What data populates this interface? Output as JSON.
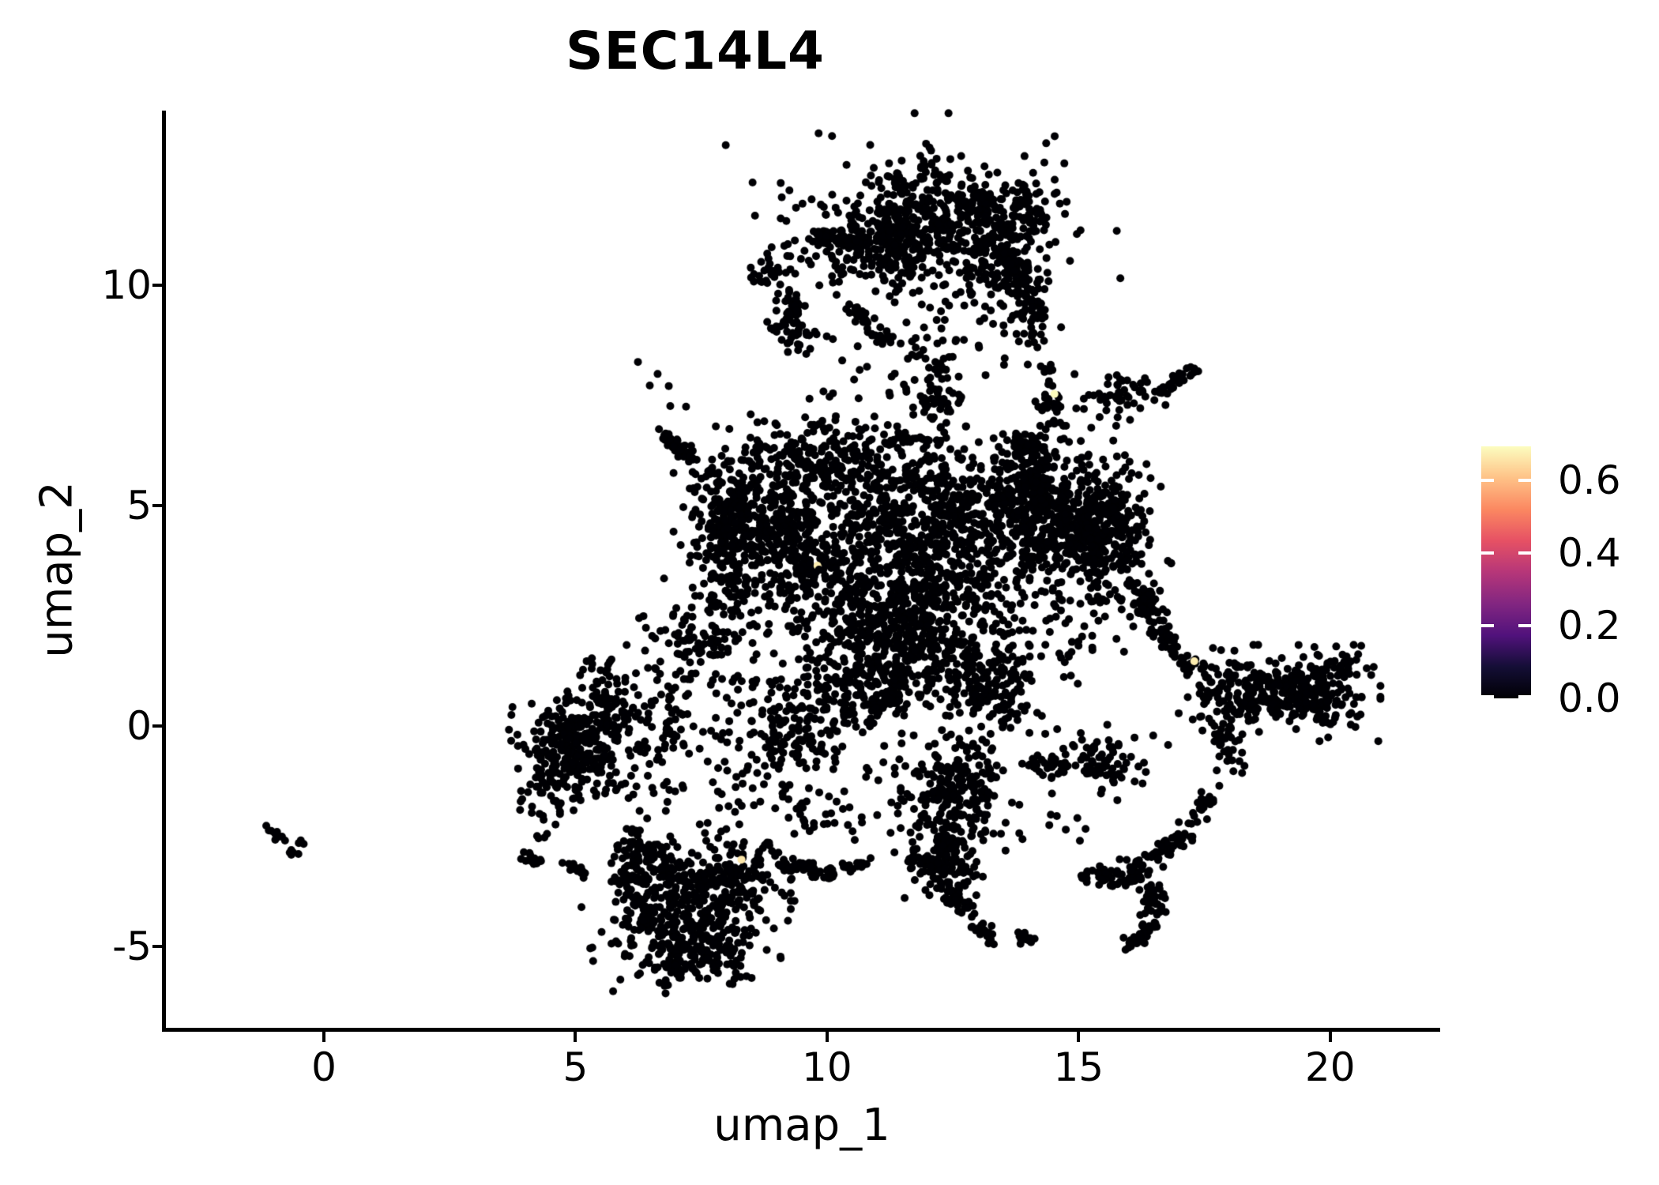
{
  "title": "SEC14L4",
  "axes": {
    "x": {
      "label": "umap_1",
      "ticks": [
        0,
        5,
        10,
        15,
        20
      ],
      "range": [
        -3.14,
        22.14
      ]
    },
    "y": {
      "label": "umap_2",
      "ticks": [
        -5,
        0,
        5,
        10
      ],
      "range": [
        -6.88,
        13.96
      ]
    }
  },
  "colorbar": {
    "tick_labels": [
      "0.0",
      "0.2",
      "0.4",
      "0.6"
    ],
    "tick_values": [
      0,
      0.2,
      0.4,
      0.6
    ],
    "domain": [
      0,
      0.693
    ],
    "colormap": "magma",
    "stops": [
      [
        0,
        "#000004"
      ],
      [
        0.125,
        "#140e36"
      ],
      [
        0.25,
        "#51127c"
      ],
      [
        0.375,
        "#822681"
      ],
      [
        0.5,
        "#b63679"
      ],
      [
        0.625,
        "#e65164"
      ],
      [
        0.75,
        "#fb8861"
      ],
      [
        0.875,
        "#fec287"
      ],
      [
        1,
        "#fcfdbf"
      ]
    ]
  },
  "style": {
    "background": "#ffffff",
    "point_color": "#000004",
    "point_radius": 5,
    "axis_color": "#000000",
    "cb_tick_color": "#ffffff"
  },
  "chart_data": {
    "type": "scatter",
    "title": "SEC14L4",
    "xlabel": "umap_1",
    "ylabel": "umap_2",
    "xlim": [
      -3.14,
      22.14
    ],
    "ylim": [
      -6.88,
      13.96
    ],
    "grid": false,
    "legend_position": "right",
    "color_scale": {
      "name": "magma",
      "min": 0.0,
      "max": 0.693,
      "shown_ticks": [
        0.0,
        0.2,
        0.4,
        0.6
      ]
    },
    "seed": 20240601,
    "clusters": [
      {
        "k": "b",
        "x": 12.2,
        "y": 11.15,
        "sx": 1.2,
        "sy": 0.62,
        "n": 380
      },
      {
        "k": "b",
        "x": 11.05,
        "y": 11.05,
        "sx": 0.5,
        "sy": 0.5,
        "n": 110
      },
      {
        "k": "b",
        "x": 12.6,
        "y": 11.95,
        "sx": 0.75,
        "sy": 0.38,
        "n": 85
      },
      {
        "k": "b",
        "x": 13.45,
        "y": 10.55,
        "sx": 0.45,
        "sy": 0.5,
        "n": 90
      },
      {
        "k": "l",
        "x1": 9.7,
        "y1": 11.1,
        "x2": 10.7,
        "y2": 11.05,
        "w": 0.09,
        "n": 60
      },
      {
        "k": "b",
        "x": 9.0,
        "y": 10.45,
        "sx": 0.2,
        "sy": 0.25,
        "n": 26
      },
      {
        "k": "b",
        "x": 8.6,
        "y": 10.3,
        "sx": 0.12,
        "sy": 0.15,
        "n": 8
      },
      {
        "k": "b",
        "x": 13.95,
        "y": 11.6,
        "sx": 0.3,
        "sy": 0.35,
        "n": 40
      },
      {
        "k": "b",
        "x": 12.1,
        "y": 11.3,
        "sx": 1.6,
        "sy": 1.0,
        "n": 100
      },
      {
        "k": "b",
        "x": 12.05,
        "y": 12.75,
        "sx": 0.12,
        "sy": 0.22,
        "n": 13
      },
      {
        "k": "b",
        "x": 11.45,
        "y": 12.35,
        "sx": 0.15,
        "sy": 0.2,
        "n": 14
      },
      {
        "k": "l",
        "x1": 9.25,
        "y1": 9.7,
        "x2": 9.5,
        "y2": 8.45,
        "w": 0.13,
        "n": 48
      },
      {
        "k": "b",
        "x": 9.18,
        "y": 9.05,
        "sx": 0.2,
        "sy": 0.25,
        "n": 22
      },
      {
        "k": "b",
        "x": 12.3,
        "y": 8.6,
        "sx": 0.65,
        "sy": 0.6,
        "n": 40
      },
      {
        "k": "l",
        "x1": 12.25,
        "y1": 8.45,
        "x2": 12.2,
        "y2": 7.0,
        "w": 0.12,
        "n": 26
      },
      {
        "k": "l",
        "x1": 13.75,
        "y1": 10.5,
        "x2": 14.15,
        "y2": 9.05,
        "w": 0.2,
        "n": 85
      },
      {
        "k": "l",
        "x1": 14.3,
        "y1": 8.3,
        "x2": 14.55,
        "y2": 6.8,
        "w": 0.12,
        "n": 30
      },
      {
        "k": "l",
        "x1": 10.45,
        "y1": 9.65,
        "x2": 10.78,
        "y2": 9.1,
        "w": 0.09,
        "n": 20
      },
      {
        "k": "l",
        "x1": 10.82,
        "y1": 9.0,
        "x2": 11.28,
        "y2": 8.68,
        "w": 0.09,
        "n": 16
      },
      {
        "k": "b",
        "x": 11.2,
        "y": 7.9,
        "sx": 1.1,
        "sy": 0.55,
        "n": 26
      },
      {
        "k": "l",
        "x1": 16.7,
        "y1": 7.7,
        "x2": 17.35,
        "y2": 8.1,
        "w": 0.07,
        "n": 28
      },
      {
        "k": "b",
        "x": 15.85,
        "y": 7.5,
        "sx": 0.42,
        "sy": 0.26,
        "n": 55
      },
      {
        "k": "b",
        "x": 8.9,
        "y": 4.6,
        "sx": 0.75,
        "sy": 0.95,
        "n": 520
      },
      {
        "k": "l",
        "x1": 7.95,
        "y1": 5.5,
        "x2": 8.1,
        "y2": 2.7,
        "w": 0.25,
        "n": 120
      },
      {
        "k": "b",
        "x": 11.3,
        "y": 3.1,
        "sx": 1.05,
        "sy": 1.0,
        "n": 600
      },
      {
        "k": "b",
        "x": 11.6,
        "y": 5.05,
        "sx": 1.0,
        "sy": 0.72,
        "n": 330
      },
      {
        "k": "b",
        "x": 14.5,
        "y": 4.6,
        "sx": 0.9,
        "sy": 0.85,
        "n": 550
      },
      {
        "k": "b",
        "x": 15.55,
        "y": 4.5,
        "sx": 0.5,
        "sy": 0.8,
        "n": 200
      },
      {
        "k": "b",
        "x": 11.7,
        "y": 1.8,
        "sx": 0.9,
        "sy": 0.6,
        "n": 280
      },
      {
        "k": "b",
        "x": 10.6,
        "y": 0.85,
        "sx": 0.8,
        "sy": 0.55,
        "n": 160
      },
      {
        "k": "l",
        "x1": 6.72,
        "y1": 6.62,
        "x2": 7.35,
        "y2": 6.05,
        "w": 0.08,
        "n": 40
      },
      {
        "k": "l",
        "x1": 7.45,
        "y1": 5.95,
        "x2": 7.95,
        "y2": 5.5,
        "w": 0.16,
        "n": 14
      },
      {
        "k": "b",
        "x": 10.2,
        "y": 6.1,
        "sx": 0.8,
        "sy": 0.4,
        "n": 140
      },
      {
        "k": "l",
        "x1": 11.3,
        "y1": 6.55,
        "x2": 12.35,
        "y2": 6.45,
        "w": 0.08,
        "n": 22
      },
      {
        "k": "b",
        "x": 12.0,
        "y": 7.3,
        "sx": 0.16,
        "sy": 0.16,
        "n": 14
      },
      {
        "k": "b",
        "x": 12.85,
        "y": 4.2,
        "sx": 0.6,
        "sy": 0.8,
        "n": 150
      },
      {
        "k": "l",
        "x1": 13.6,
        "y1": 6.55,
        "x2": 14.2,
        "y2": 6.3,
        "w": 0.12,
        "n": 25
      },
      {
        "k": "b",
        "x": 13.9,
        "y": 5.9,
        "sx": 0.35,
        "sy": 0.3,
        "n": 60
      },
      {
        "k": "b",
        "x": 7.6,
        "y": 2.2,
        "sx": 0.5,
        "sy": 0.6,
        "n": 90
      },
      {
        "k": "b",
        "x": 6.85,
        "y": 1.2,
        "sx": 0.5,
        "sy": 0.65,
        "n": 40
      },
      {
        "k": "b",
        "x": 9.3,
        "y": 0.35,
        "sx": 0.7,
        "sy": 0.5,
        "n": 90
      },
      {
        "k": "b",
        "x": 9.35,
        "y": -0.5,
        "sx": 0.6,
        "sy": 0.5,
        "n": 70
      },
      {
        "k": "b",
        "x": 13.25,
        "y": 1.2,
        "sx": 0.5,
        "sy": 0.6,
        "n": 90
      },
      {
        "k": "b",
        "x": 13.2,
        "y": 0.5,
        "sx": 0.45,
        "sy": 0.55,
        "n": 70
      },
      {
        "k": "l",
        "x1": 16.1,
        "y1": 3.3,
        "x2": 16.5,
        "y2": 2.35,
        "w": 0.15,
        "n": 45
      },
      {
        "k": "b",
        "x": 15.0,
        "y": 2.0,
        "sx": 0.4,
        "sy": 0.4,
        "n": 30
      },
      {
        "k": "b",
        "x": 4.95,
        "y": -0.55,
        "sx": 0.55,
        "sy": 0.6,
        "n": 260
      },
      {
        "k": "l",
        "x1": 4.3,
        "y1": -1.55,
        "x2": 5.45,
        "y2": 0.85,
        "w": 0.3,
        "n": 80
      },
      {
        "k": "b",
        "x": 5.8,
        "y": 0.3,
        "sx": 0.3,
        "sy": 0.35,
        "n": 50
      },
      {
        "k": "b",
        "x": 5.2,
        "y": 1.35,
        "sx": 0.1,
        "sy": 0.12,
        "n": 6
      },
      {
        "k": "b",
        "x": 5.65,
        "y": 1.15,
        "sx": 0.22,
        "sy": 0.2,
        "n": 10
      },
      {
        "k": "l",
        "x1": 3.95,
        "y1": -2.85,
        "x2": 4.25,
        "y2": -3.1,
        "w": 0.07,
        "n": 14
      },
      {
        "k": "l",
        "x1": 4.85,
        "y1": -3.12,
        "x2": 5.15,
        "y2": -3.4,
        "w": 0.07,
        "n": 12
      },
      {
        "k": "b",
        "x": 4.42,
        "y": -2.55,
        "sx": 0.07,
        "sy": 0.07,
        "n": 4
      },
      {
        "k": "b",
        "x": 6.7,
        "y": -0.3,
        "sx": 0.4,
        "sy": 0.7,
        "n": 50
      },
      {
        "k": "b",
        "x": 6.35,
        "y": -1.4,
        "sx": 0.3,
        "sy": 0.3,
        "n": 12
      },
      {
        "k": "b",
        "x": 7.8,
        "y": -1.6,
        "sx": 0.6,
        "sy": 0.5,
        "n": 18
      },
      {
        "k": "b",
        "x": 7.2,
        "y": -4.3,
        "sx": 0.8,
        "sy": 0.75,
        "n": 420
      },
      {
        "k": "b",
        "x": 6.35,
        "y": -3.3,
        "sx": 0.35,
        "sy": 0.45,
        "n": 80
      },
      {
        "k": "b",
        "x": 8.3,
        "y": -3.4,
        "sx": 0.45,
        "sy": 0.45,
        "n": 110
      },
      {
        "k": "l",
        "x1": 6.1,
        "y1": -2.5,
        "x2": 6.55,
        "y2": -3.05,
        "w": 0.15,
        "n": 30
      },
      {
        "k": "b",
        "x": 7.3,
        "y": -5.35,
        "sx": 0.55,
        "sy": 0.22,
        "n": 80
      },
      {
        "k": "l",
        "x1": 9.1,
        "y1": -3.1,
        "x2": 10.15,
        "y2": -3.35,
        "w": 0.1,
        "n": 55
      },
      {
        "k": "l",
        "x1": 10.3,
        "y1": -3.22,
        "x2": 10.95,
        "y2": -3.05,
        "w": 0.08,
        "n": 16
      },
      {
        "k": "b",
        "x": 9.8,
        "y": -2.0,
        "sx": 0.5,
        "sy": 0.5,
        "n": 25
      },
      {
        "k": "b",
        "x": 12.45,
        "y": -1.7,
        "sx": 0.55,
        "sy": 0.5,
        "n": 170
      },
      {
        "k": "b",
        "x": 12.3,
        "y": -3.1,
        "sx": 0.35,
        "sy": 0.4,
        "n": 90
      },
      {
        "k": "l",
        "x1": 12.5,
        "y1": -2.3,
        "x2": 12.32,
        "y2": -3.0,
        "w": 0.2,
        "n": 40
      },
      {
        "k": "l",
        "x1": 12.45,
        "y1": -3.6,
        "x2": 12.85,
        "y2": -4.35,
        "w": 0.12,
        "n": 35
      },
      {
        "k": "l",
        "x1": 12.9,
        "y1": -4.5,
        "x2": 13.3,
        "y2": -4.85,
        "w": 0.09,
        "n": 22
      },
      {
        "k": "l",
        "x1": 13.75,
        "y1": -4.75,
        "x2": 14.15,
        "y2": -4.85,
        "w": 0.07,
        "n": 16
      },
      {
        "k": "l",
        "x1": 11.7,
        "y1": -2.9,
        "x2": 12.0,
        "y2": -3.2,
        "w": 0.08,
        "n": 14
      },
      {
        "k": "b",
        "x": 12.6,
        "y": -0.9,
        "sx": 0.4,
        "sy": 0.35,
        "n": 50
      },
      {
        "k": "b",
        "x": 15.35,
        "y": -0.75,
        "sx": 0.55,
        "sy": 0.3,
        "n": 90
      },
      {
        "k": "l",
        "x1": 14.0,
        "y1": -0.8,
        "x2": 14.65,
        "y2": -0.75,
        "w": 0.1,
        "n": 15
      },
      {
        "k": "l",
        "x1": 17.15,
        "y1": -2.35,
        "x2": 16.05,
        "y2": -3.45,
        "w": 0.13,
        "n": 70
      },
      {
        "k": "l",
        "x1": 16.0,
        "y1": -3.42,
        "x2": 15.05,
        "y2": -3.35,
        "w": 0.12,
        "n": 45
      },
      {
        "k": "l",
        "x1": 16.35,
        "y1": -3.7,
        "x2": 16.6,
        "y2": -4.35,
        "w": 0.12,
        "n": 35
      },
      {
        "k": "l",
        "x1": 16.5,
        "y1": -4.5,
        "x2": 15.95,
        "y2": -5.05,
        "w": 0.1,
        "n": 30
      },
      {
        "k": "l",
        "x1": 17.3,
        "y1": -2.2,
        "x2": 17.75,
        "y2": -1.35,
        "w": 0.1,
        "n": 20
      },
      {
        "k": "b",
        "x": 19.7,
        "y": 0.75,
        "sx": 0.5,
        "sy": 0.42,
        "n": 200
      },
      {
        "k": "b",
        "x": 18.6,
        "y": 0.8,
        "sx": 0.55,
        "sy": 0.4,
        "n": 130
      },
      {
        "k": "b",
        "x": 17.9,
        "y": 0.6,
        "sx": 0.35,
        "sy": 0.45,
        "n": 60
      },
      {
        "k": "l",
        "x1": 17.75,
        "y1": 0.0,
        "x2": 18.15,
        "y2": -1.0,
        "w": 0.12,
        "n": 35
      },
      {
        "k": "b",
        "x": 20.35,
        "y": 1.35,
        "sx": 0.25,
        "sy": 0.2,
        "n": 18
      },
      {
        "k": "l",
        "x1": 16.55,
        "y1": 2.25,
        "x2": 17.35,
        "y2": 1.15,
        "w": 0.1,
        "n": 45
      },
      {
        "k": "b",
        "x": 16.3,
        "y": 2.6,
        "sx": 0.12,
        "sy": 0.12,
        "n": 8
      },
      {
        "k": "l",
        "x1": -1.08,
        "y1": -2.38,
        "x2": -0.6,
        "y2": -2.92,
        "w": 0.06,
        "n": 15
      },
      {
        "k": "b",
        "x": -0.42,
        "y": -2.67,
        "sx": 0.04,
        "sy": 0.04,
        "n": 3
      },
      {
        "k": "b",
        "x": 10.5,
        "y": 7.3,
        "sx": 1.5,
        "sy": 0.5,
        "n": 18
      },
      {
        "k": "b",
        "x": 7.0,
        "y": 7.7,
        "sx": 0.4,
        "sy": 0.35,
        "n": 6
      },
      {
        "k": "b",
        "x": 14.5,
        "y": -2.2,
        "sx": 0.6,
        "sy": 0.5,
        "n": 12
      },
      {
        "k": "b",
        "x": 11.0,
        "y": -1.5,
        "sx": 0.6,
        "sy": 0.6,
        "n": 18
      },
      {
        "k": "b",
        "x": 8.9,
        "y": -1.5,
        "sx": 0.5,
        "sy": 0.5,
        "n": 15
      },
      {
        "k": "b",
        "x": 9.6,
        "y": 3.6,
        "sx": 0.14,
        "sy": 0.12,
        "n": 6,
        "z": 2
      },
      {
        "k": "b",
        "x": 10.0,
        "y": 3.55,
        "sx": 0.16,
        "sy": 0.14,
        "n": 7,
        "z": 2
      },
      {
        "k": "b",
        "x": 14.45,
        "y": 7.25,
        "sx": 0.12,
        "sy": 0.2,
        "n": 4,
        "z": 2
      }
    ],
    "highlight_points": [
      {
        "x": 9.81,
        "y": 3.64,
        "value": 0.67
      },
      {
        "x": 14.52,
        "y": 7.53,
        "value": 0.69
      },
      {
        "x": 8.3,
        "y": -3.03,
        "value": 0.66
      },
      {
        "x": 17.3,
        "y": 1.47,
        "value": 0.67
      }
    ]
  }
}
